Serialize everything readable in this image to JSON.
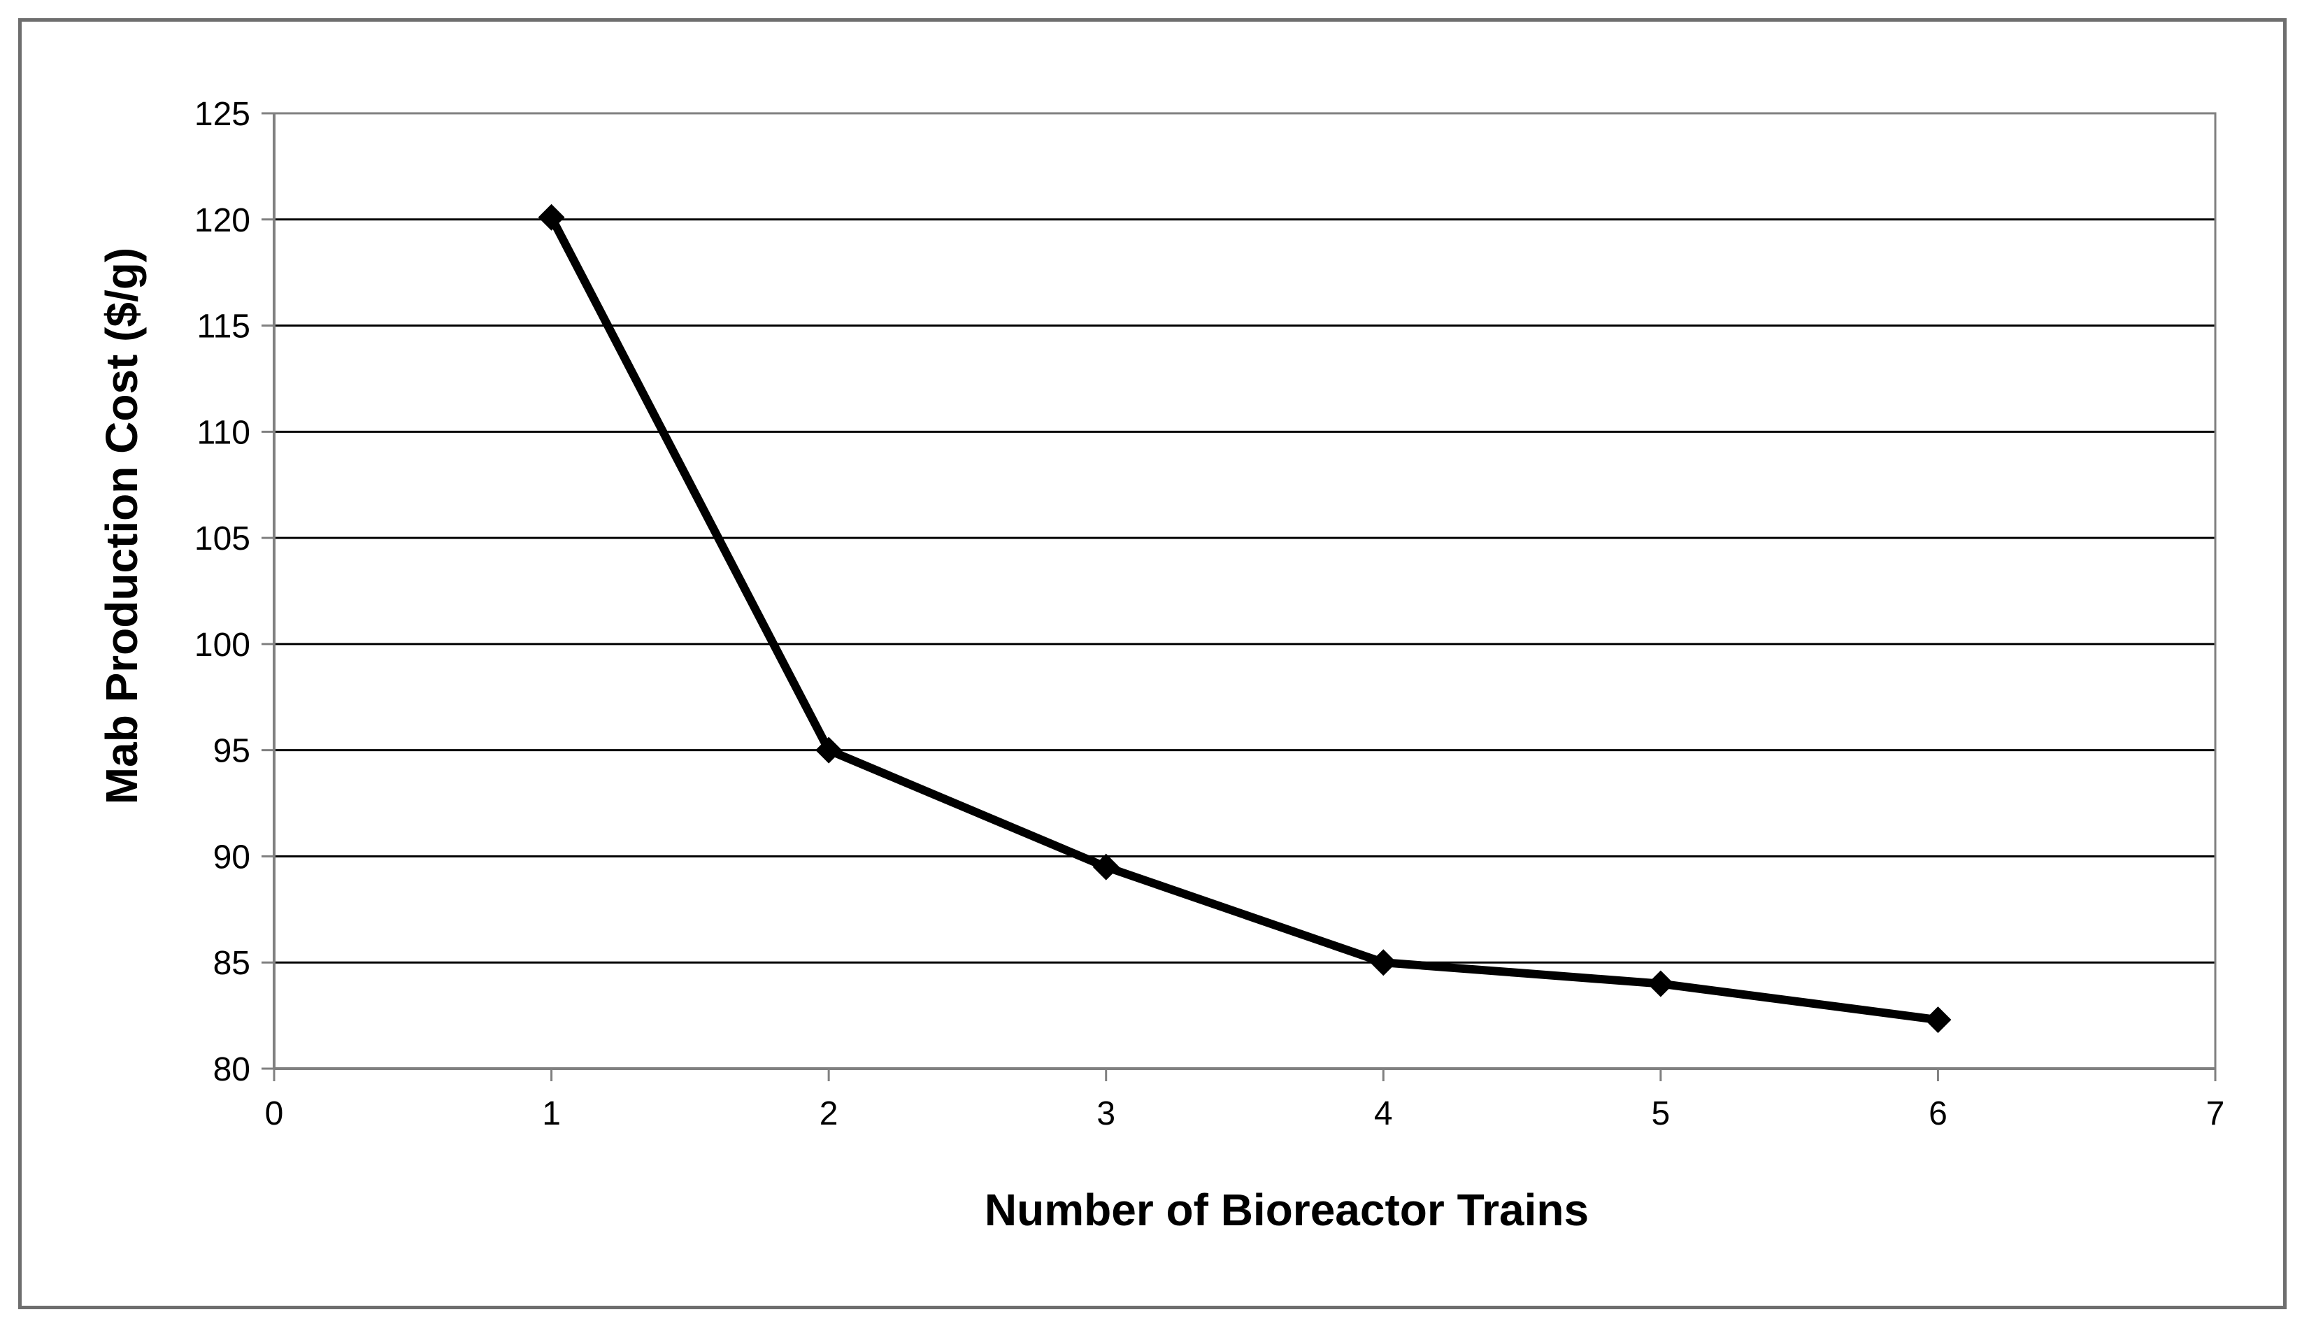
{
  "chart_data": {
    "type": "line",
    "title": "",
    "xlabel": "Number of Bioreactor Trains",
    "ylabel": "Mab Production Cost ($/g)",
    "xlim": [
      0,
      7
    ],
    "ylim": [
      80,
      125
    ],
    "xticks": [
      0,
      1,
      2,
      3,
      4,
      5,
      6,
      7
    ],
    "yticks": [
      80,
      85,
      90,
      95,
      100,
      105,
      110,
      115,
      120,
      125
    ],
    "grid": true,
    "legend": "none",
    "series": [
      {
        "marker": "diamond",
        "color": "#000000",
        "x": [
          1,
          2,
          3,
          4,
          5,
          6
        ],
        "values": [
          120.1,
          95.0,
          89.5,
          85.0,
          84.0,
          82.3
        ]
      }
    ]
  },
  "colors": {
    "line": "#000000",
    "gridline": "#000000",
    "axis": "#808080",
    "frame": "#6e6e6e",
    "background": "#ffffff"
  }
}
